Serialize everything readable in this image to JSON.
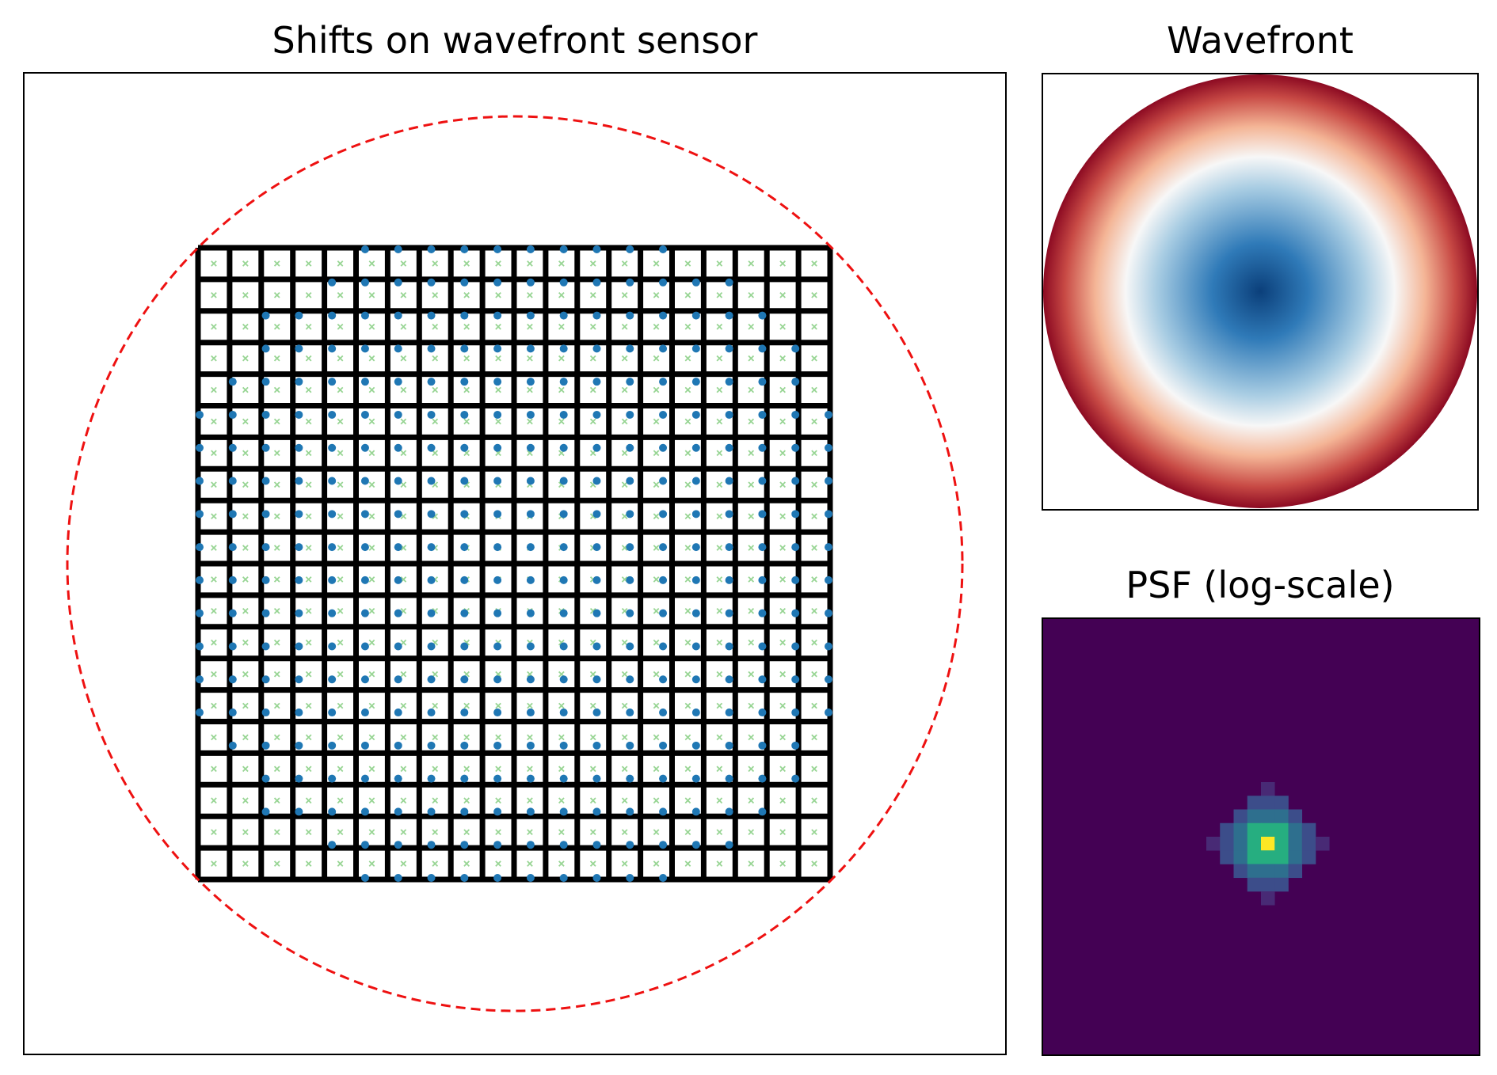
{
  "chart_data": [
    {
      "type": "scatter",
      "title": "Shifts on wavefront sensor",
      "grid_size": 20,
      "pupil_outline": {
        "style": "dashed",
        "color": "#ee1111"
      },
      "series": [
        {
          "marker": "x",
          "color": "#98d594",
          "description_of_values": "reference spot positions, one per subaperture center"
        },
        {
          "marker": "circle",
          "color": "#1f77b4",
          "description_of_values": "measured spot positions, radially shifted outward"
        }
      ],
      "shift_scale": 0.12,
      "xlim": [
        -1.1,
        1.1
      ],
      "ylim": [
        -1.1,
        1.1
      ]
    },
    {
      "type": "heatmap",
      "title": "Wavefront",
      "colormap": "RdBu_r",
      "shape": "circular pupil, radially symmetric (defocus-like)",
      "colors": [
        "#0b3f7a",
        "#2f7ab8",
        "#a9cde3",
        "#f7f7f7",
        "#f4b596",
        "#c84a45",
        "#8c0a22"
      ]
    },
    {
      "type": "heatmap",
      "title": "PSF (log-scale)",
      "colormap": "viridis",
      "grid_size": 32,
      "peak": [
        16,
        16
      ],
      "colors": [
        "#440154",
        "#482a75",
        "#3c4d8a",
        "#2e6f8e",
        "#21918c",
        "#26ae80",
        "#5dc962",
        "#fde725"
      ]
    }
  ]
}
